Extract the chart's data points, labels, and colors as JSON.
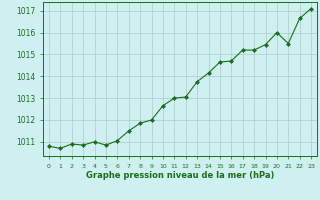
{
  "x": [
    0,
    1,
    2,
    3,
    4,
    5,
    6,
    7,
    8,
    9,
    10,
    11,
    12,
    13,
    14,
    15,
    16,
    17,
    18,
    19,
    20,
    21,
    22,
    23
  ],
  "y": [
    1010.8,
    1010.7,
    1010.9,
    1010.85,
    1011.0,
    1010.85,
    1011.05,
    1011.5,
    1011.85,
    1012.0,
    1012.65,
    1013.0,
    1013.05,
    1013.75,
    1014.15,
    1014.65,
    1014.7,
    1015.2,
    1015.2,
    1015.45,
    1016.0,
    1015.5,
    1016.65,
    1017.1
  ],
  "line_color": "#1a6e1a",
  "marker_color": "#1a6e1a",
  "bg_color": "#cff0f0",
  "grid_color": "#b0c8c8",
  "xlabel": "Graphe pression niveau de la mer (hPa)",
  "xlabel_color": "#1a6e1a",
  "tick_color": "#1a6e1a",
  "yticks": [
    1011,
    1012,
    1013,
    1014,
    1015,
    1016,
    1017
  ],
  "ylim": [
    1010.35,
    1017.4
  ],
  "xlim": [
    -0.5,
    23.5
  ]
}
